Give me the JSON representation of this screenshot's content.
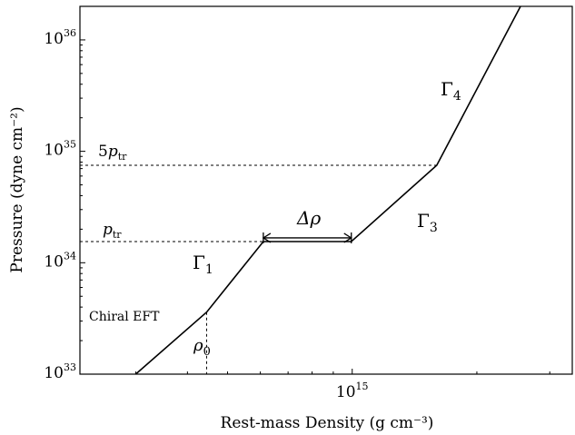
{
  "chart_data": {
    "type": "line",
    "title": "",
    "xlabel": "Rest-mass Density (g cm⁻³)",
    "ylabel": "Pressure (dyne cm⁻²)",
    "xscale": "log",
    "yscale": "log",
    "xlim": [
      220000000000000.0,
      3400000000000000.0
    ],
    "ylim": [
      1e+33,
      2e+36
    ],
    "xticks": [
      {
        "value": 1000000000000000.0,
        "label_base": "10",
        "label_exp": "15"
      }
    ],
    "yticks": [
      {
        "value": 1e+33,
        "label_base": "10",
        "label_exp": "33"
      },
      {
        "value": 1e+34,
        "label_base": "10",
        "label_exp": "34"
      },
      {
        "value": 1e+35,
        "label_base": "10",
        "label_exp": "35"
      },
      {
        "value": 1e+36,
        "label_base": "10",
        "label_exp": "36"
      }
    ],
    "grid": false,
    "series": [
      {
        "points": [
          [
            300000000000000.0,
            1e+33
          ],
          [
            445000000000000.0,
            3.6e+33
          ],
          [
            610000000000000.0,
            1.55e+34
          ],
          [
            995000000000000.0,
            1.55e+34
          ],
          [
            1600000000000000.0,
            7.5e+34
          ],
          [
            2550000000000000.0,
            2e+36
          ]
        ],
        "color": "#000000"
      }
    ],
    "guides": {
      "p_tr": 1.55e+34,
      "five_p_tr": 7.5e+34,
      "rho_0": 445000000000000.0,
      "delta_rho": [
        610000000000000.0,
        995000000000000.0
      ]
    },
    "annotations": {
      "gamma_1": {
        "base": "Γ",
        "sub": "1"
      },
      "gamma_3": {
        "base": "Γ",
        "sub": "3"
      },
      "gamma_4": {
        "base": "Γ",
        "sub": "4"
      },
      "delta_rho": "Δρ",
      "rho_0": {
        "base": "ρ",
        "sub": "0"
      },
      "p_tr": {
        "base": "p",
        "sub": "tr"
      },
      "five_p_tr": {
        "prefix": "5",
        "base": "p",
        "sub": "tr"
      },
      "chiral_eft": "Chiral EFT"
    }
  }
}
